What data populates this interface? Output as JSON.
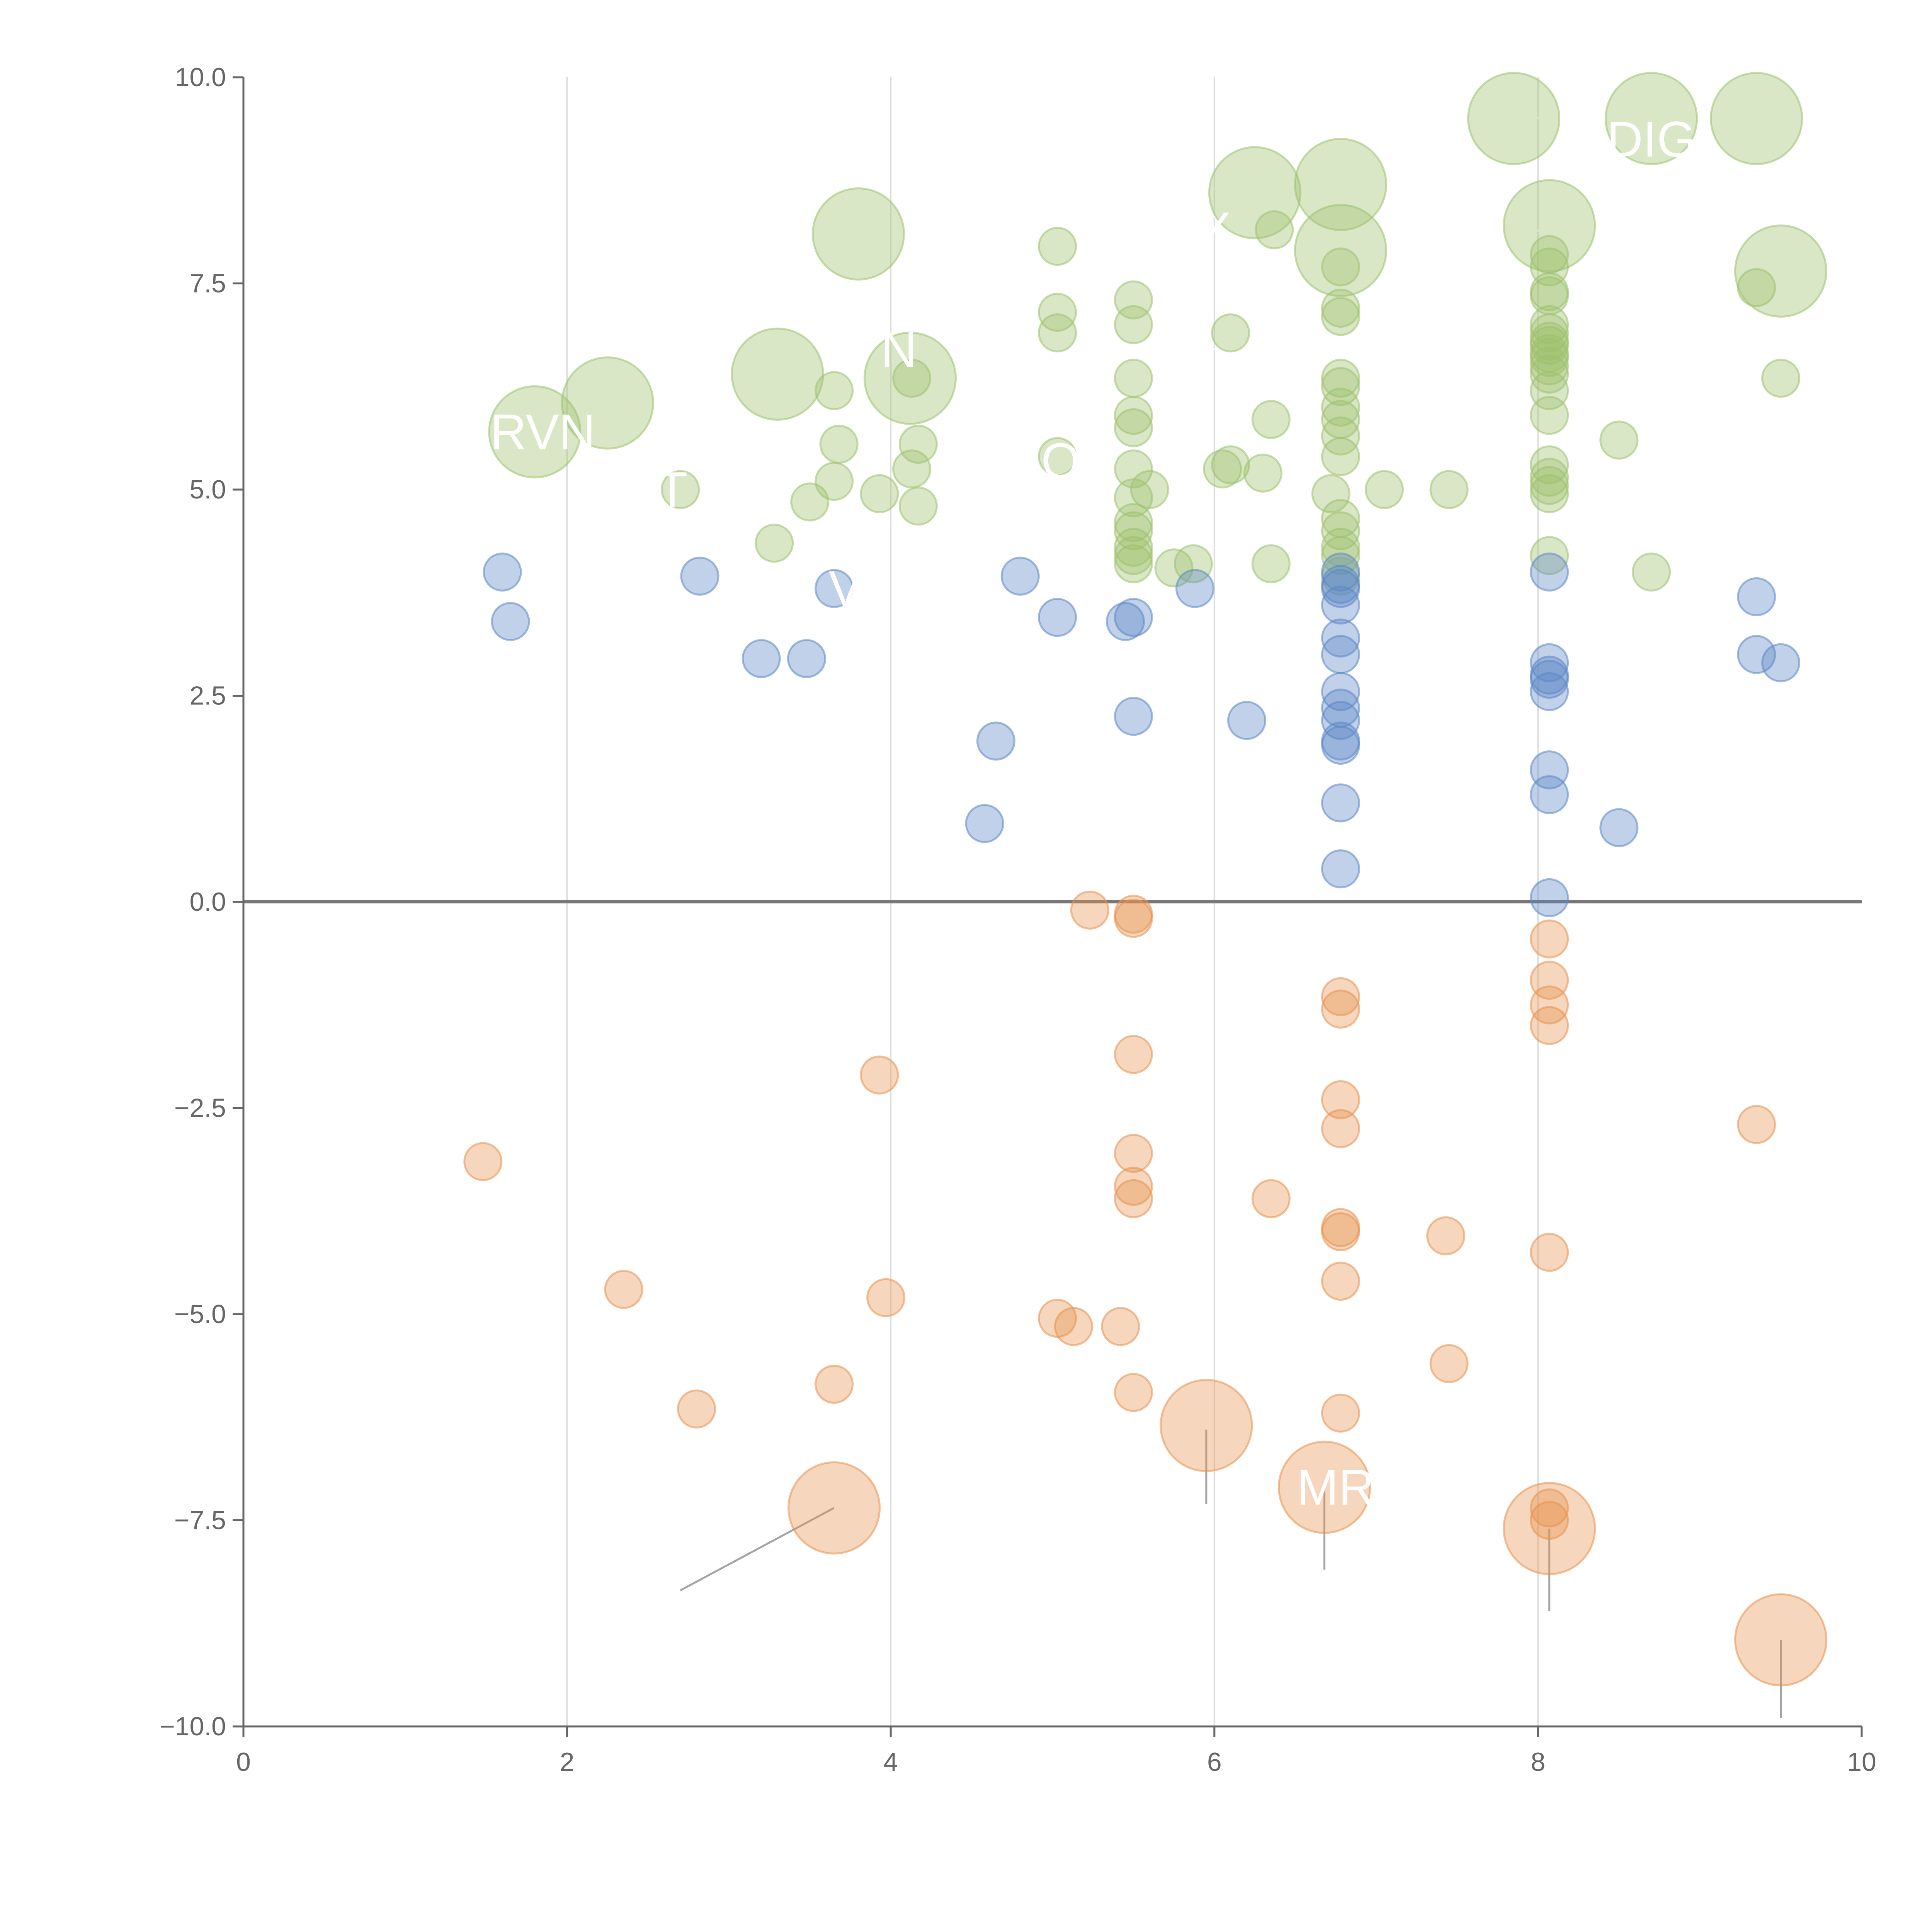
{
  "chart_data": {
    "type": "scatter",
    "title": "",
    "xlabel": "",
    "ylabel": "",
    "xlim": [
      0,
      10
    ],
    "ylim": [
      -10,
      10
    ],
    "x_ticks": [
      "0",
      "2",
      "4",
      "6",
      "8",
      "10"
    ],
    "y_ticks": [
      "10.0",
      "7.5",
      "5.0",
      "2.5",
      "0.0",
      "−2.5",
      "−5.0",
      "−7.5",
      "−10.0"
    ],
    "x_tick_values": [
      0,
      2,
      4,
      6,
      8,
      10
    ],
    "y_tick_values": [
      10,
      7.5,
      5,
      2.5,
      0,
      -2.5,
      -5,
      -7.5,
      -10
    ],
    "vertical_gridlines": [
      2,
      4,
      6,
      8
    ],
    "zero_line": 0,
    "colors": {
      "green": "#9dc16d",
      "blue": "#5b86c6",
      "orange": "#e8924f",
      "axis": "#666666",
      "grid": "#dddddd",
      "zero": "#777777",
      "leader": "#9a9a9a",
      "label": "#ffffff"
    },
    "series": [
      {
        "name": "green",
        "color": "#9dc16d",
        "points": [
          [
            1.8,
            5.7,
            "L"
          ],
          [
            2.25,
            6.05,
            "L"
          ],
          [
            2.7,
            5.0,
            "S"
          ],
          [
            3.3,
            6.4,
            "L"
          ],
          [
            3.28,
            4.35,
            "S"
          ],
          [
            3.5,
            4.85,
            "S"
          ],
          [
            3.65,
            5.1,
            "S"
          ],
          [
            3.65,
            6.2,
            "S"
          ],
          [
            3.68,
            5.55,
            "S"
          ],
          [
            3.8,
            8.1,
            "L"
          ],
          [
            3.93,
            4.95,
            "S"
          ],
          [
            4.12,
            6.35,
            "L"
          ],
          [
            4.13,
            6.35,
            "S"
          ],
          [
            4.13,
            5.25,
            "S"
          ],
          [
            4.17,
            4.8,
            "S"
          ],
          [
            4.17,
            5.55,
            "S"
          ],
          [
            5.03,
            7.95,
            "S"
          ],
          [
            5.03,
            7.15,
            "S"
          ],
          [
            5.03,
            6.9,
            "S"
          ],
          [
            5.03,
            5.4,
            "S"
          ],
          [
            5.5,
            7.3,
            "S"
          ],
          [
            5.5,
            7.0,
            "S"
          ],
          [
            5.5,
            6.35,
            "S"
          ],
          [
            5.5,
            5.9,
            "S"
          ],
          [
            5.5,
            5.75,
            "S"
          ],
          [
            5.5,
            5.25,
            "S"
          ],
          [
            5.5,
            4.9,
            "S"
          ],
          [
            5.5,
            4.6,
            "S"
          ],
          [
            5.5,
            4.5,
            "S"
          ],
          [
            5.5,
            4.3,
            "S"
          ],
          [
            5.5,
            4.2,
            "S"
          ],
          [
            5.5,
            4.1,
            "S"
          ],
          [
            5.6,
            5.0,
            "S"
          ],
          [
            5.75,
            4.05,
            "S"
          ],
          [
            5.87,
            4.1,
            "S"
          ],
          [
            6.05,
            5.25,
            "S"
          ],
          [
            6.1,
            5.3,
            "S"
          ],
          [
            6.1,
            6.9,
            "S"
          ],
          [
            6.25,
            8.6,
            "L"
          ],
          [
            6.3,
            5.2,
            "S"
          ],
          [
            6.35,
            5.85,
            "S"
          ],
          [
            6.35,
            4.1,
            "S"
          ],
          [
            6.37,
            8.15,
            "S"
          ],
          [
            6.72,
            4.95,
            "S"
          ],
          [
            6.78,
            8.7,
            "L"
          ],
          [
            6.78,
            7.9,
            "L"
          ],
          [
            6.78,
            7.7,
            "S"
          ],
          [
            6.78,
            7.2,
            "S"
          ],
          [
            6.78,
            7.1,
            "S"
          ],
          [
            6.78,
            6.35,
            "S"
          ],
          [
            6.78,
            6.25,
            "S"
          ],
          [
            6.78,
            6.0,
            "S"
          ],
          [
            6.78,
            5.85,
            "S"
          ],
          [
            6.78,
            5.65,
            "S"
          ],
          [
            6.78,
            5.4,
            "S"
          ],
          [
            6.78,
            4.65,
            "S"
          ],
          [
            6.78,
            4.5,
            "S"
          ],
          [
            6.78,
            4.3,
            "S"
          ],
          [
            6.78,
            4.2,
            "S"
          ],
          [
            6.78,
            3.95,
            "S"
          ],
          [
            7.05,
            5.0,
            "S"
          ],
          [
            7.45,
            5.0,
            "S"
          ],
          [
            7.85,
            9.5,
            "L"
          ],
          [
            8.07,
            8.2,
            "L"
          ],
          [
            8.07,
            7.85,
            "S"
          ],
          [
            8.07,
            7.7,
            "S"
          ],
          [
            8.07,
            7.4,
            "S"
          ],
          [
            8.07,
            7.35,
            "S"
          ],
          [
            8.07,
            7.0,
            "S"
          ],
          [
            8.07,
            6.9,
            "S"
          ],
          [
            8.07,
            6.8,
            "S"
          ],
          [
            8.07,
            6.75,
            "S"
          ],
          [
            8.07,
            6.65,
            "S"
          ],
          [
            8.07,
            6.6,
            "S"
          ],
          [
            8.07,
            6.5,
            "S"
          ],
          [
            8.07,
            6.4,
            "S"
          ],
          [
            8.07,
            6.2,
            "S"
          ],
          [
            8.07,
            5.9,
            "S"
          ],
          [
            8.07,
            5.3,
            "S"
          ],
          [
            8.07,
            5.15,
            "S"
          ],
          [
            8.07,
            5.05,
            "S"
          ],
          [
            8.07,
            4.95,
            "S"
          ],
          [
            8.07,
            4.2,
            "S"
          ],
          [
            8.5,
            5.6,
            "S"
          ],
          [
            8.7,
            9.5,
            "L"
          ],
          [
            8.7,
            4.0,
            "S"
          ],
          [
            9.35,
            9.5,
            "L"
          ],
          [
            9.35,
            7.45,
            "S"
          ],
          [
            9.5,
            7.65,
            "L"
          ],
          [
            9.5,
            6.35,
            "S"
          ]
        ]
      },
      {
        "name": "blue",
        "color": "#5b86c6",
        "points": [
          [
            1.6,
            4.0,
            "S"
          ],
          [
            1.65,
            3.4,
            "S"
          ],
          [
            2.82,
            3.95,
            "S"
          ],
          [
            3.2,
            2.95,
            "S"
          ],
          [
            3.48,
            2.95,
            "S"
          ],
          [
            3.65,
            3.8,
            "S"
          ],
          [
            4.58,
            0.95,
            "S"
          ],
          [
            4.65,
            1.95,
            "S"
          ],
          [
            4.8,
            3.95,
            "S"
          ],
          [
            5.03,
            3.45,
            "S"
          ],
          [
            5.45,
            3.4,
            "S"
          ],
          [
            5.5,
            3.45,
            "S"
          ],
          [
            5.5,
            2.25,
            "S"
          ],
          [
            5.88,
            3.8,
            "S"
          ],
          [
            6.2,
            2.2,
            "S"
          ],
          [
            6.78,
            4.0,
            "S"
          ],
          [
            6.78,
            3.85,
            "S"
          ],
          [
            6.78,
            3.8,
            "S"
          ],
          [
            6.78,
            3.6,
            "S"
          ],
          [
            6.78,
            3.2,
            "S"
          ],
          [
            6.78,
            3.0,
            "S"
          ],
          [
            6.78,
            2.55,
            "S"
          ],
          [
            6.78,
            2.35,
            "S"
          ],
          [
            6.78,
            2.2,
            "S"
          ],
          [
            6.78,
            1.95,
            "S"
          ],
          [
            6.78,
            1.9,
            "S"
          ],
          [
            6.78,
            1.2,
            "S"
          ],
          [
            6.78,
            0.4,
            "S"
          ],
          [
            8.07,
            4.0,
            "S"
          ],
          [
            8.07,
            2.9,
            "S"
          ],
          [
            8.07,
            2.75,
            "S"
          ],
          [
            8.07,
            2.7,
            "S"
          ],
          [
            8.07,
            2.55,
            "S"
          ],
          [
            8.07,
            1.6,
            "S"
          ],
          [
            8.07,
            1.3,
            "S"
          ],
          [
            8.07,
            0.05,
            "S"
          ],
          [
            8.5,
            0.9,
            "S"
          ],
          [
            9.35,
            3.7,
            "S"
          ],
          [
            9.35,
            3.0,
            "S"
          ],
          [
            9.5,
            2.9,
            "S"
          ]
        ]
      },
      {
        "name": "orange",
        "color": "#e8924f",
        "points": [
          [
            1.48,
            -3.15,
            "S"
          ],
          [
            2.35,
            -4.7,
            "S"
          ],
          [
            2.8,
            -6.15,
            "S"
          ],
          [
            3.65,
            -5.85,
            "S"
          ],
          [
            3.65,
            -7.35,
            "L"
          ],
          [
            3.93,
            -2.1,
            "S"
          ],
          [
            3.97,
            -4.8,
            "S"
          ],
          [
            5.03,
            -5.05,
            "S"
          ],
          [
            5.13,
            -5.15,
            "S"
          ],
          [
            5.23,
            -0.1,
            "S"
          ],
          [
            5.42,
            -5.15,
            "S"
          ],
          [
            5.5,
            -0.15,
            "S"
          ],
          [
            5.5,
            -0.2,
            "S"
          ],
          [
            5.5,
            -1.85,
            "S"
          ],
          [
            5.5,
            -3.05,
            "S"
          ],
          [
            5.5,
            -3.45,
            "S"
          ],
          [
            5.5,
            -3.6,
            "S"
          ],
          [
            5.5,
            -5.95,
            "S"
          ],
          [
            5.95,
            -6.35,
            "L"
          ],
          [
            6.35,
            -3.6,
            "S"
          ],
          [
            6.68,
            -7.1,
            "L"
          ],
          [
            6.78,
            -1.15,
            "S"
          ],
          [
            6.78,
            -1.3,
            "S"
          ],
          [
            6.78,
            -2.4,
            "S"
          ],
          [
            6.78,
            -2.75,
            "S"
          ],
          [
            6.78,
            -3.95,
            "S"
          ],
          [
            6.78,
            -4.0,
            "S"
          ],
          [
            6.78,
            -4.6,
            "S"
          ],
          [
            6.78,
            -6.2,
            "S"
          ],
          [
            7.43,
            -4.05,
            "S"
          ],
          [
            7.45,
            -5.6,
            "S"
          ],
          [
            8.07,
            -0.45,
            "S"
          ],
          [
            8.07,
            -0.95,
            "S"
          ],
          [
            8.07,
            -1.25,
            "S"
          ],
          [
            8.07,
            -1.5,
            "S"
          ],
          [
            8.07,
            -4.25,
            "S"
          ],
          [
            8.07,
            -7.35,
            "S"
          ],
          [
            8.07,
            -7.5,
            "S"
          ],
          [
            8.07,
            -7.6,
            "L"
          ],
          [
            9.35,
            -2.7,
            "S"
          ],
          [
            9.5,
            -8.95,
            "L"
          ]
        ]
      }
    ],
    "labels": [
      {
        "text": "RVN",
        "x": 1.85,
        "y": 5.7,
        "ax": 1.9,
        "ay": 5.6
      },
      {
        "text": "T",
        "x": 2.65,
        "y": 5.0,
        "ax": 2.7,
        "ay": 5.0
      },
      {
        "text": "N",
        "x": 4.05,
        "y": 6.7,
        "ax": 4.12,
        "ay": 6.35
      },
      {
        "text": "V",
        "x": 3.72,
        "y": 3.8,
        "ax": 3.7,
        "ay": 3.8
      },
      {
        "text": "O",
        "x": 5.05,
        "y": 5.35,
        "ax": 5.03,
        "ay": 5.4
      },
      {
        "text": "X",
        "x": 6.0,
        "y": 8.15,
        "ax": 6.2,
        "ay": 8.5
      },
      {
        "text": "DIG",
        "x": 8.7,
        "y": 9.25,
        "ax": 8.7,
        "ay": 9.5
      },
      {
        "text": "MR",
        "x": 6.75,
        "y": -7.1,
        "ax": 6.68,
        "ay": -7.1
      }
    ],
    "leader_lines": [
      {
        "x1": 1.85,
        "y1": 5.65,
        "x2": 1.8,
        "y2": 5.7
      },
      {
        "x1": 2.2,
        "y1": 6.05,
        "x2": 2.25,
        "y2": 6.05
      },
      {
        "x1": 3.05,
        "y1": 6.65,
        "x2": 3.28,
        "y2": 6.45
      },
      {
        "x1": 3.75,
        "y1": 8.0,
        "x2": 3.9,
        "y2": 7.85
      },
      {
        "x1": 4.1,
        "y1": 4.9,
        "x2": 4.13,
        "y2": 6.25
      },
      {
        "x1": 5.55,
        "y1": 6.1,
        "x2": 5.9,
        "y2": 6.4
      },
      {
        "x1": 6.0,
        "y1": 6.7,
        "x2": 6.25,
        "y2": 6.9
      },
      {
        "x1": 6.0,
        "y1": 8.65,
        "x2": 6.78,
        "y2": 8.7
      },
      {
        "x1": 6.0,
        "y1": 8.3,
        "x2": 6.25,
        "y2": 8.55
      },
      {
        "x1": 6.55,
        "y1": 7.4,
        "x2": 6.75,
        "y2": 7.85
      },
      {
        "x1": 7.6,
        "y1": 9.55,
        "x2": 8.05,
        "y2": 9.5
      },
      {
        "x1": 7.95,
        "y1": 8.1,
        "x2": 8.07,
        "y2": 8.2
      },
      {
        "x1": 9.35,
        "y1": 9.45,
        "x2": 9.32,
        "y2": 9.2
      },
      {
        "x1": 9.45,
        "y1": 7.8,
        "x2": 9.28,
        "y2": 7.95
      },
      {
        "x1": 2.7,
        "y1": -8.35,
        "x2": 3.65,
        "y2": -7.35
      },
      {
        "x1": 5.95,
        "y1": -6.4,
        "x2": 5.95,
        "y2": -7.3
      },
      {
        "x1": 6.68,
        "y1": -7.1,
        "x2": 6.68,
        "y2": -8.1
      },
      {
        "x1": 8.07,
        "y1": -7.6,
        "x2": 8.07,
        "y2": -8.6
      },
      {
        "x1": 9.5,
        "y1": -8.95,
        "x2": 9.5,
        "y2": -9.9
      }
    ]
  }
}
